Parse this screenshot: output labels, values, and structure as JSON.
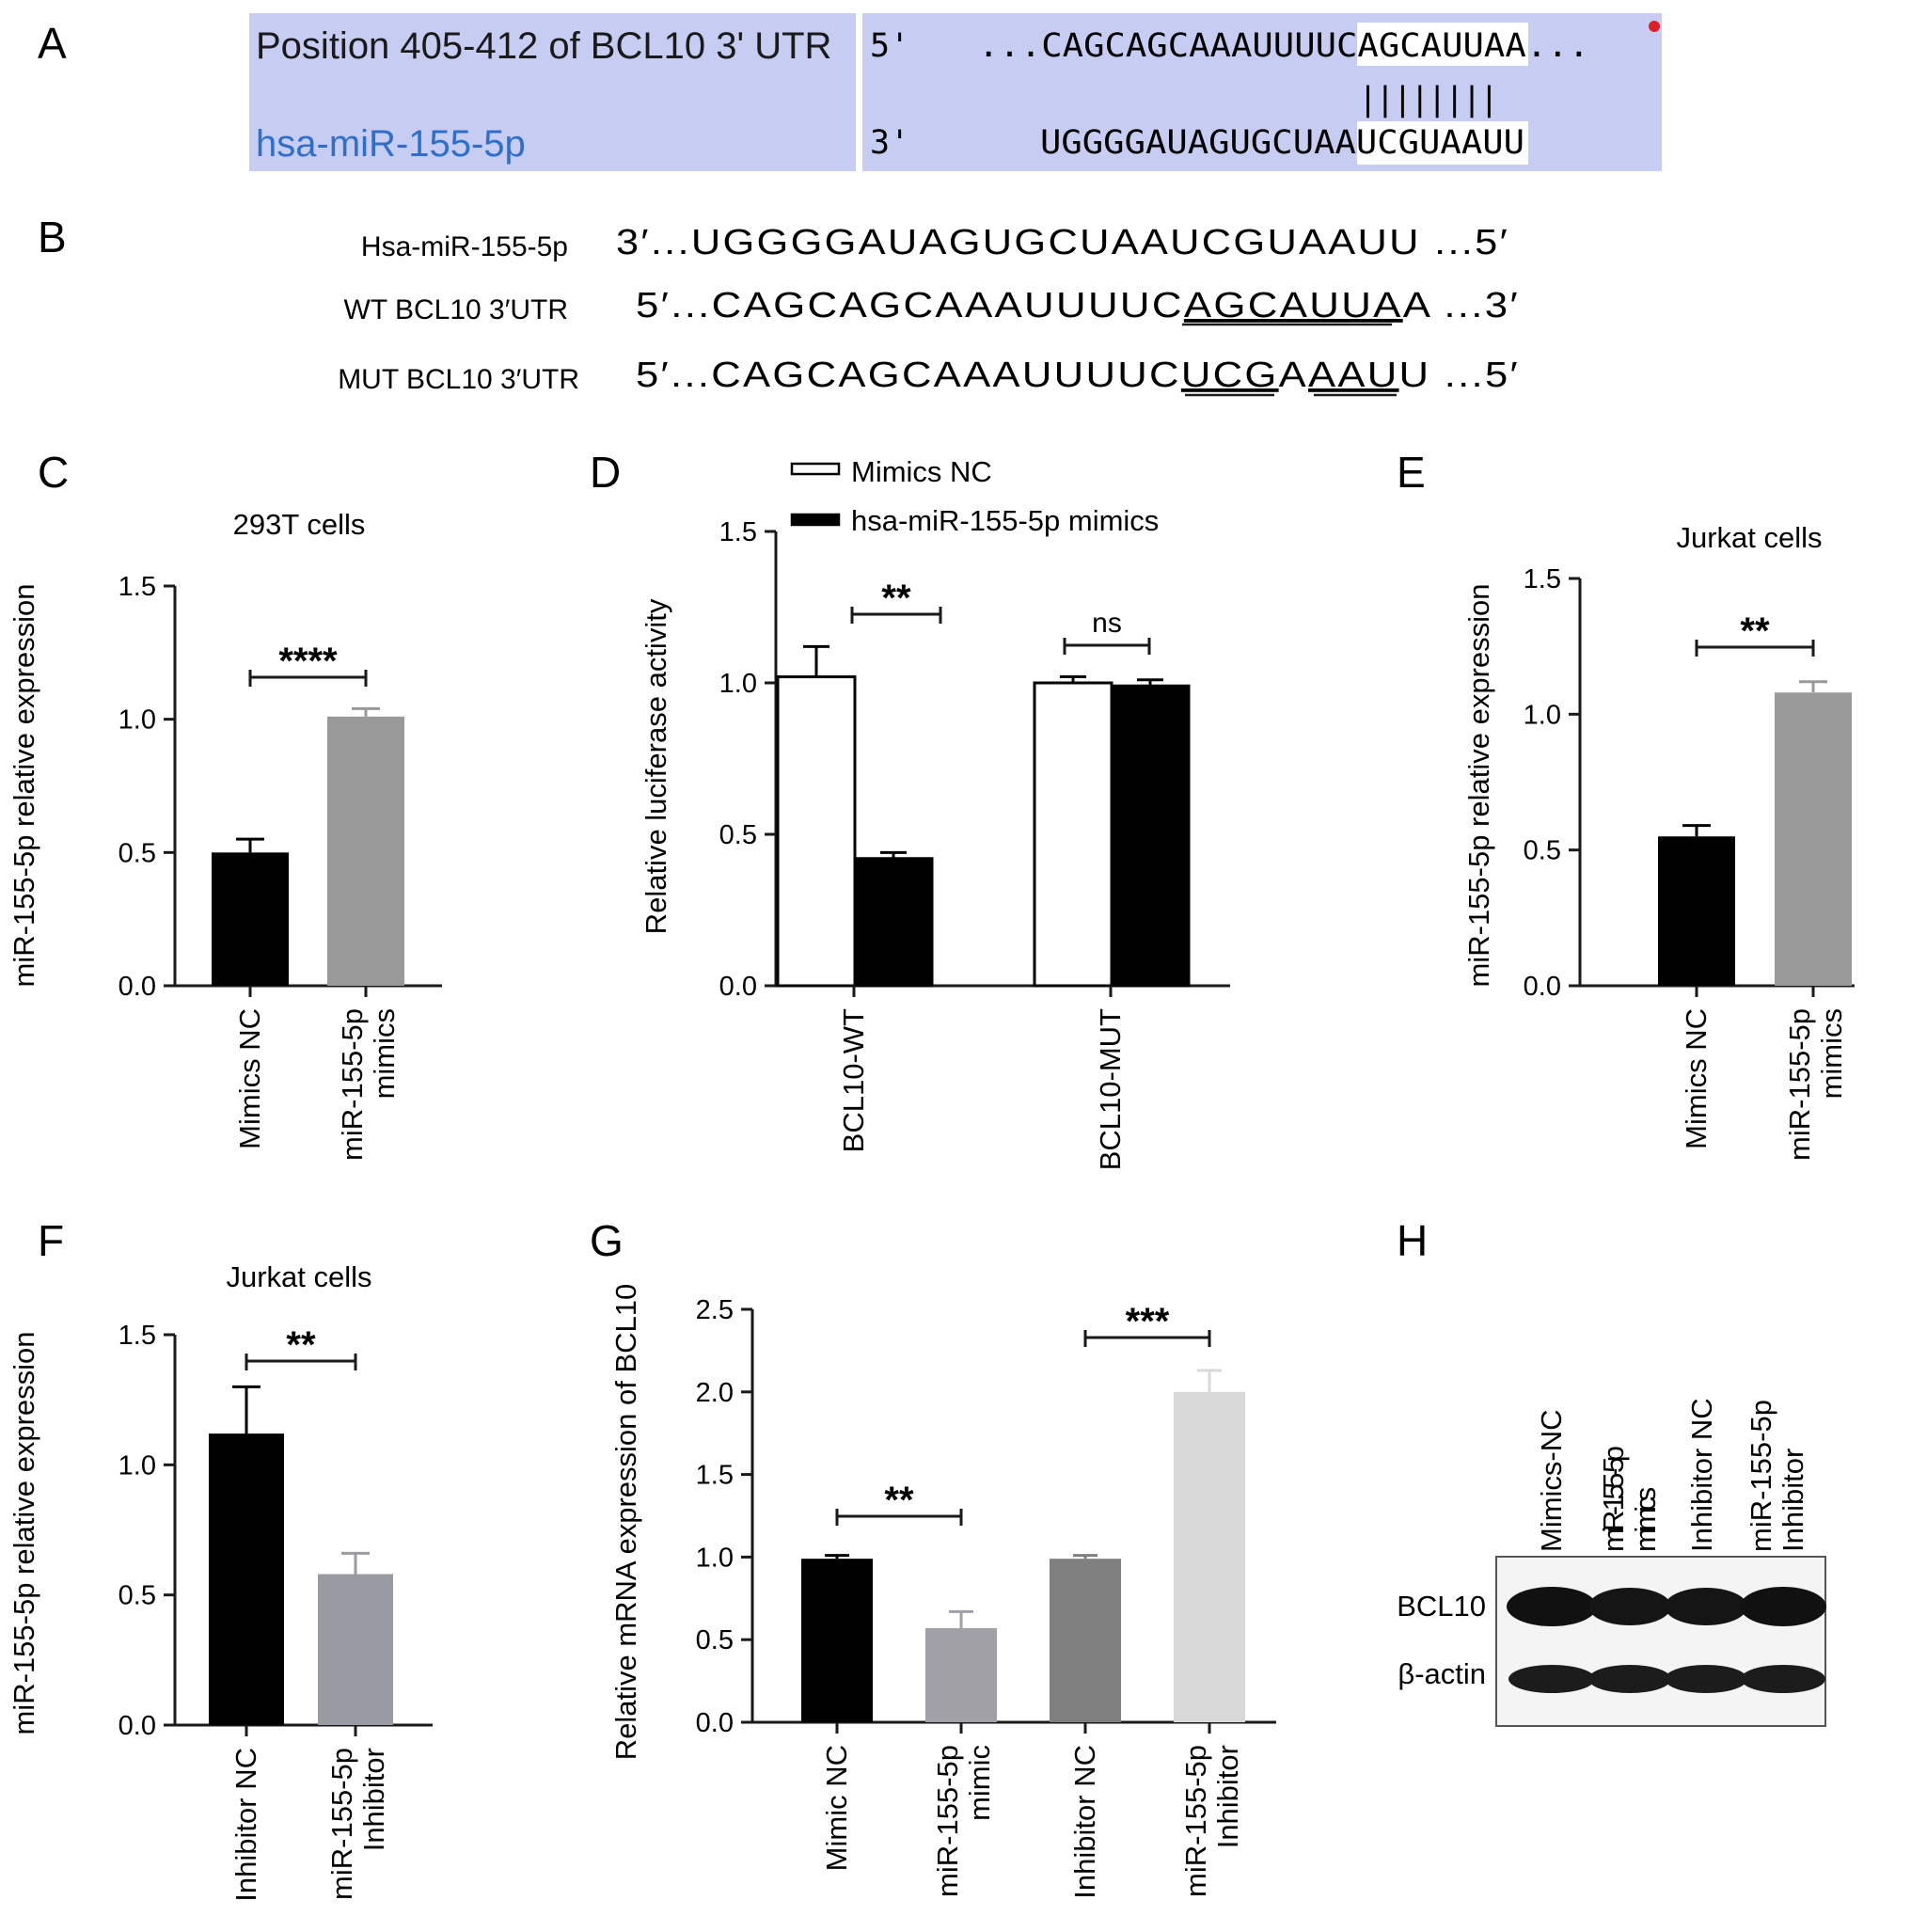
{
  "panel_letters": {
    "A": "A",
    "B": "B",
    "C": "C",
    "D": "D",
    "E": "E",
    "F": "F",
    "G": "G",
    "H": "H"
  },
  "panelA": {
    "top_label": "Position 405-412 of BCL10 3' UTR",
    "bottom_label": "hsa-miR-155-5p",
    "top_prime": "5'",
    "bottom_prime": "3'",
    "top_seq_prefix": "...CAGCAGCAAAUUUUC",
    "top_seq_match": "AGCAUUAA",
    "top_seq_suffix": "...",
    "bottom_seq_prefix": "UGGGGAUAGUGCUAA",
    "bottom_seq_match": "UCGUAAUU",
    "pairing": "||||||||",
    "colors": {
      "highlight": "#c7cdf2",
      "match_box": "#ffffff",
      "mirna_label": "#2f6fcc",
      "dot": "#e02020"
    }
  },
  "panelB": {
    "rows": [
      {
        "label": "Hsa-miR-155-5p",
        "seq": "3′...UGGGGAUAGUGCUAAUCGUAAUU ...5′"
      },
      {
        "label": "WT BCL10 3′UTR",
        "seq_pre": "5′...CAGCAGCAAAUUUUC",
        "seq_u1": "AGCAUUA",
        "seq_mid": "A",
        "seq_u2": "",
        "seq_post": " ...3′"
      },
      {
        "label": "MUT BCL10 3′UTR",
        "seq_pre": "5′...CAGCAGCAAAUUUUC",
        "seq_u1": "UCG",
        "seq_mid": "A",
        "seq_u2": "AAU",
        "seq_post": "U ...5′"
      }
    ]
  },
  "chart_data": [
    {
      "panel": "C",
      "type": "bar",
      "title": "293T cells",
      "ylabel": "miR-155-5p relative expression",
      "categories": [
        "Mimics NC",
        "miR-155-5p mimics"
      ],
      "values": [
        0.5,
        1.01
      ],
      "errors": [
        0.05,
        0.03
      ],
      "colors": [
        "#000000",
        "#999999"
      ],
      "ylim": [
        0,
        1.5
      ],
      "yticks": [
        "0.0",
        "0.5",
        "1.0",
        "1.5"
      ],
      "significance": [
        {
          "from": 0,
          "to": 1,
          "label": "****"
        }
      ]
    },
    {
      "panel": "D",
      "type": "bar",
      "title": "",
      "ylabel": "Relative luciferase activity",
      "categories": [
        "BCL10-WT",
        "BCL10-MUT"
      ],
      "series": [
        {
          "name": "Mimics NC",
          "values": [
            1.02,
            1.0
          ],
          "errors": [
            0.1,
            0.02
          ],
          "color": "#ffffff"
        },
        {
          "name": "hsa-miR-155-5p mimics",
          "values": [
            0.42,
            0.99
          ],
          "errors": [
            0.02,
            0.02
          ],
          "color": "#000000"
        }
      ],
      "ylim": [
        0,
        1.5
      ],
      "yticks": [
        "0.0",
        "0.5",
        "1.0",
        "1.5"
      ],
      "legend_position": "top",
      "significance": [
        {
          "group": 0,
          "label": "**"
        },
        {
          "group": 1,
          "label": "ns"
        }
      ]
    },
    {
      "panel": "E",
      "type": "bar",
      "title": "Jurkat cells",
      "ylabel": "miR-155-5p relative expression",
      "categories": [
        "Mimics NC",
        "miR-155-5p mimics"
      ],
      "values": [
        0.55,
        1.08
      ],
      "errors": [
        0.04,
        0.04
      ],
      "colors": [
        "#000000",
        "#999999"
      ],
      "ylim": [
        0,
        1.5
      ],
      "yticks": [
        "0.0",
        "0.5",
        "1.0",
        "1.5"
      ],
      "significance": [
        {
          "from": 0,
          "to": 1,
          "label": "**"
        }
      ]
    },
    {
      "panel": "F",
      "type": "bar",
      "title": "Jurkat cells",
      "ylabel": "miR-155-5p relative expression",
      "categories": [
        "Inhibitor NC",
        "miR-155-5p Inhibitor"
      ],
      "values": [
        1.12,
        0.58
      ],
      "errors": [
        0.18,
        0.08
      ],
      "colors": [
        "#000000",
        "#9a9aa2"
      ],
      "ylim": [
        0,
        1.5
      ],
      "yticks": [
        "0.0",
        "0.5",
        "1.0",
        "1.5"
      ],
      "significance": [
        {
          "from": 0,
          "to": 1,
          "label": "**"
        }
      ]
    },
    {
      "panel": "G",
      "type": "bar",
      "title": "",
      "ylabel": "Relative mRNA expression of BCL10",
      "categories": [
        "Mimic NC",
        "miR-155-5p mimic",
        "Inhibitor NC",
        "miR-155-5p Inhibitor"
      ],
      "values": [
        0.99,
        0.57,
        0.99,
        2.0
      ],
      "errors": [
        0.02,
        0.1,
        0.02,
        0.13
      ],
      "colors": [
        "#000000",
        "#a0a0a6",
        "#808080",
        "#d8d8d8"
      ],
      "ylim": [
        0,
        2.5
      ],
      "yticks": [
        "0.0",
        "0.5",
        "1.0",
        "1.5",
        "2.0",
        "2.5"
      ],
      "significance": [
        {
          "from": 0,
          "to": 1,
          "label": "**"
        },
        {
          "from": 2,
          "to": 3,
          "label": "***"
        }
      ]
    }
  ],
  "panelH": {
    "lanes": [
      "Mimics-NC",
      "miR-155-5p mimics",
      "Inhibitor NC",
      "miR-155-5p Inhibitor"
    ],
    "bands": [
      "BCL10",
      "β-actin"
    ]
  }
}
